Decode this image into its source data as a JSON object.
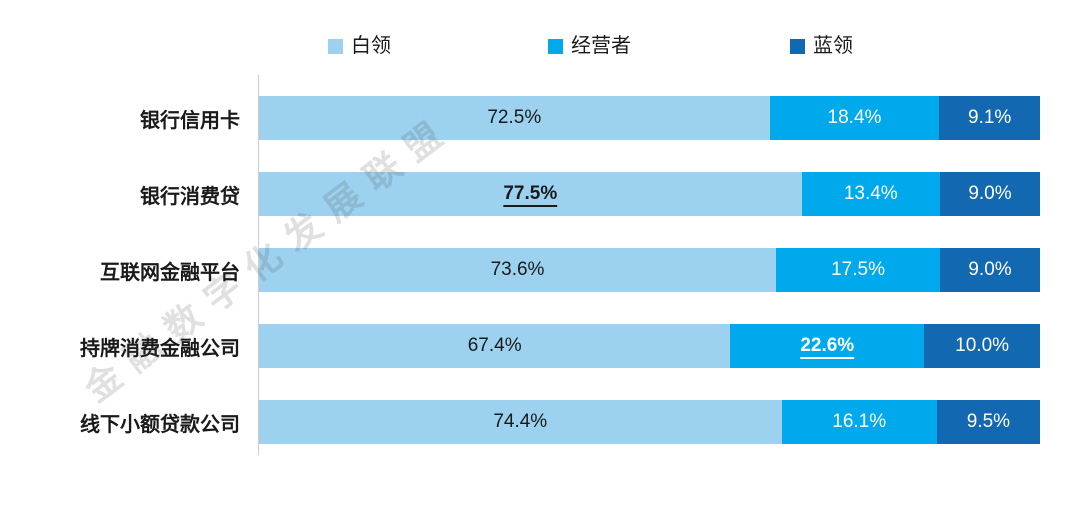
{
  "legend": [
    {
      "label": "白领",
      "color": "#9CD2EF"
    },
    {
      "label": "经营者",
      "color": "#00A9EC"
    },
    {
      "label": "蓝领",
      "color": "#1268B1"
    }
  ],
  "watermark": "金融数字化发展联盟",
  "chart_data": {
    "type": "bar",
    "subtype": "stacked-horizontal-100pct",
    "title": "",
    "xlabel": "",
    "ylabel": "",
    "xlim": [
      0,
      100
    ],
    "value_suffix": "%",
    "grid": false,
    "legend_position": "top",
    "categories": [
      "银行信用卡",
      "银行消费贷",
      "互联网金融平台",
      "持牌消费金融公司",
      "线下小额贷款公司"
    ],
    "series": [
      {
        "name": "白领",
        "color": "#9CD2EF",
        "values": [
          72.5,
          77.5,
          73.6,
          67.4,
          74.4
        ],
        "display": [
          "72.5%",
          "77.5%",
          "73.6%",
          "67.4%",
          "74.4%"
        ]
      },
      {
        "name": "经营者",
        "color": "#00A9EC",
        "values": [
          18.4,
          13.4,
          17.5,
          22.6,
          16.1
        ],
        "display": [
          "18.4%",
          "13.4%",
          "17.5%",
          "22.6%",
          "16.1%"
        ]
      },
      {
        "name": "蓝领",
        "color": "#1268B1",
        "values": [
          9.1,
          9.0,
          9.0,
          10.0,
          9.5
        ],
        "display": [
          "9.1%",
          "9.0%",
          "9.0%",
          "10.0%",
          "9.5%"
        ]
      }
    ],
    "highlighted": [
      {
        "row": 1,
        "series": 0,
        "display": "77.5%"
      },
      {
        "row": 3,
        "series": 1,
        "display": "22.6%"
      }
    ]
  }
}
